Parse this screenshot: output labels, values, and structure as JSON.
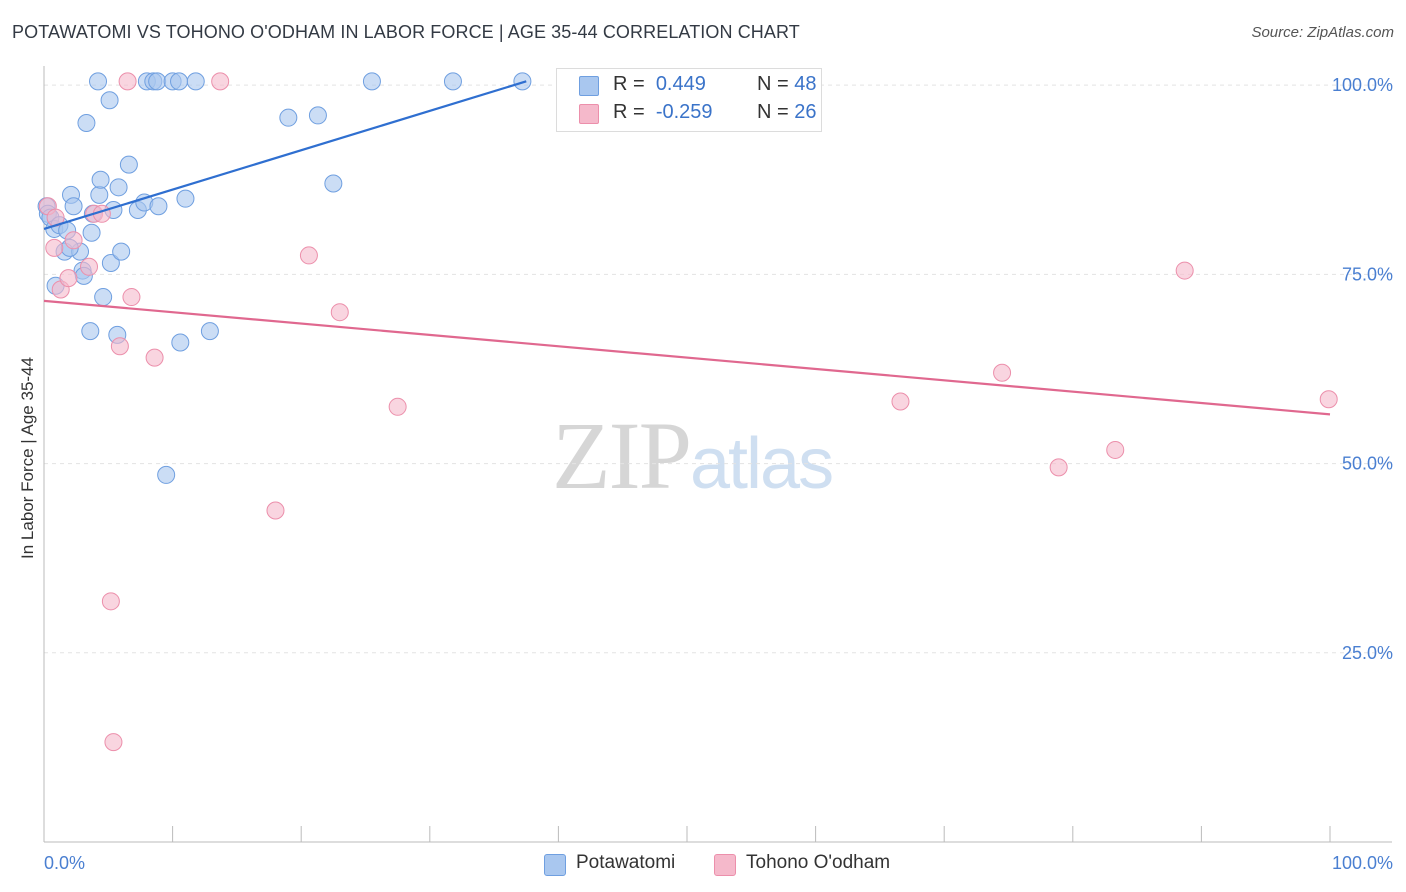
{
  "header": {
    "title": "POTAWATOMI VS TOHONO O'ODHAM IN LABOR FORCE | AGE 35-44 CORRELATION CHART",
    "source": "Source: ZipAtlas.com"
  },
  "watermark": {
    "zip": "ZIP",
    "atlas": "atlas"
  },
  "legend_top": {
    "rows": [
      {
        "r_label": "R =",
        "r_value": "0.449",
        "n_label": "N =",
        "n_value": "48",
        "color": "#a9c7ef"
      },
      {
        "r_label": "R =",
        "r_value": "-0.259",
        "n_label": "N =",
        "n_value": "26",
        "color": "#f5b9cb"
      }
    ]
  },
  "legend_bottom": {
    "items": [
      {
        "label": "Potawatomi",
        "color": "#a9c7ef"
      },
      {
        "label": "Tohono O'odham",
        "color": "#f5b9cb"
      }
    ]
  },
  "chart_data": {
    "type": "scatter",
    "title": "POTAWATOMI VS TOHONO O'ODHAM IN LABOR FORCE | AGE 35-44 CORRELATION CHART",
    "xlabel": "",
    "ylabel": "In Labor Force | Age 35-44",
    "xlim": [
      0,
      100
    ],
    "ylim": [
      0,
      102
    ],
    "x_tick_labels": [
      "0.0%",
      "100.0%"
    ],
    "y_ticks": [
      25,
      50,
      75,
      100
    ],
    "y_tick_labels": [
      "25.0%",
      "50.0%",
      "75.0%",
      "100.0%"
    ],
    "grid": true,
    "series": [
      {
        "name": "Potawatomi",
        "color": "#a9c7ef",
        "stroke": "#6f9fe0",
        "line_color": "#2f6fd0",
        "trend": {
          "x": [
            0,
            37.5
          ],
          "y": [
            81.0,
            100.5
          ]
        },
        "points": [
          [
            0.2,
            84.0
          ],
          [
            0.3,
            83.0
          ],
          [
            0.5,
            82.5
          ],
          [
            0.8,
            81.0
          ],
          [
            1.2,
            81.5
          ],
          [
            1.6,
            78.0
          ],
          [
            1.8,
            80.8
          ],
          [
            2.1,
            85.5
          ],
          [
            2.3,
            84.0
          ],
          [
            2.8,
            78.0
          ],
          [
            3.0,
            75.5
          ],
          [
            3.1,
            74.8
          ],
          [
            3.3,
            95.0
          ],
          [
            3.6,
            67.5
          ],
          [
            3.7,
            80.5
          ],
          [
            3.8,
            83.0
          ],
          [
            4.2,
            100.5
          ],
          [
            4.3,
            85.5
          ],
          [
            4.4,
            87.5
          ],
          [
            4.6,
            72.0
          ],
          [
            5.1,
            98.0
          ],
          [
            5.2,
            76.5
          ],
          [
            5.4,
            83.5
          ],
          [
            5.7,
            67.0
          ],
          [
            5.8,
            86.5
          ],
          [
            6.0,
            78.0
          ],
          [
            6.6,
            89.5
          ],
          [
            7.3,
            83.5
          ],
          [
            7.8,
            84.5
          ],
          [
            8.0,
            100.5
          ],
          [
            8.5,
            100.5
          ],
          [
            8.8,
            100.5
          ],
          [
            8.9,
            84.0
          ],
          [
            9.5,
            48.5
          ],
          [
            10.0,
            100.5
          ],
          [
            10.5,
            100.5
          ],
          [
            10.6,
            66.0
          ],
          [
            11.0,
            85.0
          ],
          [
            11.8,
            100.5
          ],
          [
            12.9,
            67.5
          ],
          [
            19.0,
            95.7
          ],
          [
            21.3,
            96.0
          ],
          [
            22.5,
            87.0
          ],
          [
            25.5,
            100.5
          ],
          [
            31.8,
            100.5
          ],
          [
            37.2,
            100.5
          ],
          [
            0.9,
            73.5
          ],
          [
            2.0,
            78.5
          ]
        ]
      },
      {
        "name": "Tohono O'odham",
        "color": "#f5b9cb",
        "stroke": "#ec8fab",
        "line_color": "#e0688f",
        "trend": {
          "x": [
            0,
            100
          ],
          "y": [
            71.5,
            56.5
          ]
        },
        "points": [
          [
            0.3,
            84.0
          ],
          [
            0.8,
            78.5
          ],
          [
            1.3,
            73.0
          ],
          [
            1.9,
            74.5
          ],
          [
            2.3,
            79.5
          ],
          [
            3.5,
            76.0
          ],
          [
            3.9,
            83.0
          ],
          [
            4.5,
            83.0
          ],
          [
            5.2,
            31.8
          ],
          [
            5.4,
            13.2
          ],
          [
            5.9,
            65.5
          ],
          [
            6.5,
            100.5
          ],
          [
            6.8,
            72.0
          ],
          [
            8.6,
            64.0
          ],
          [
            13.7,
            100.5
          ],
          [
            18.0,
            43.8
          ],
          [
            20.6,
            77.5
          ],
          [
            23.0,
            70.0
          ],
          [
            27.5,
            57.5
          ],
          [
            66.6,
            58.2
          ],
          [
            74.5,
            62.0
          ],
          [
            78.9,
            49.5
          ],
          [
            83.3,
            51.8
          ],
          [
            88.7,
            75.5
          ],
          [
            99.9,
            58.5
          ],
          [
            0.9,
            82.5
          ]
        ]
      }
    ]
  }
}
